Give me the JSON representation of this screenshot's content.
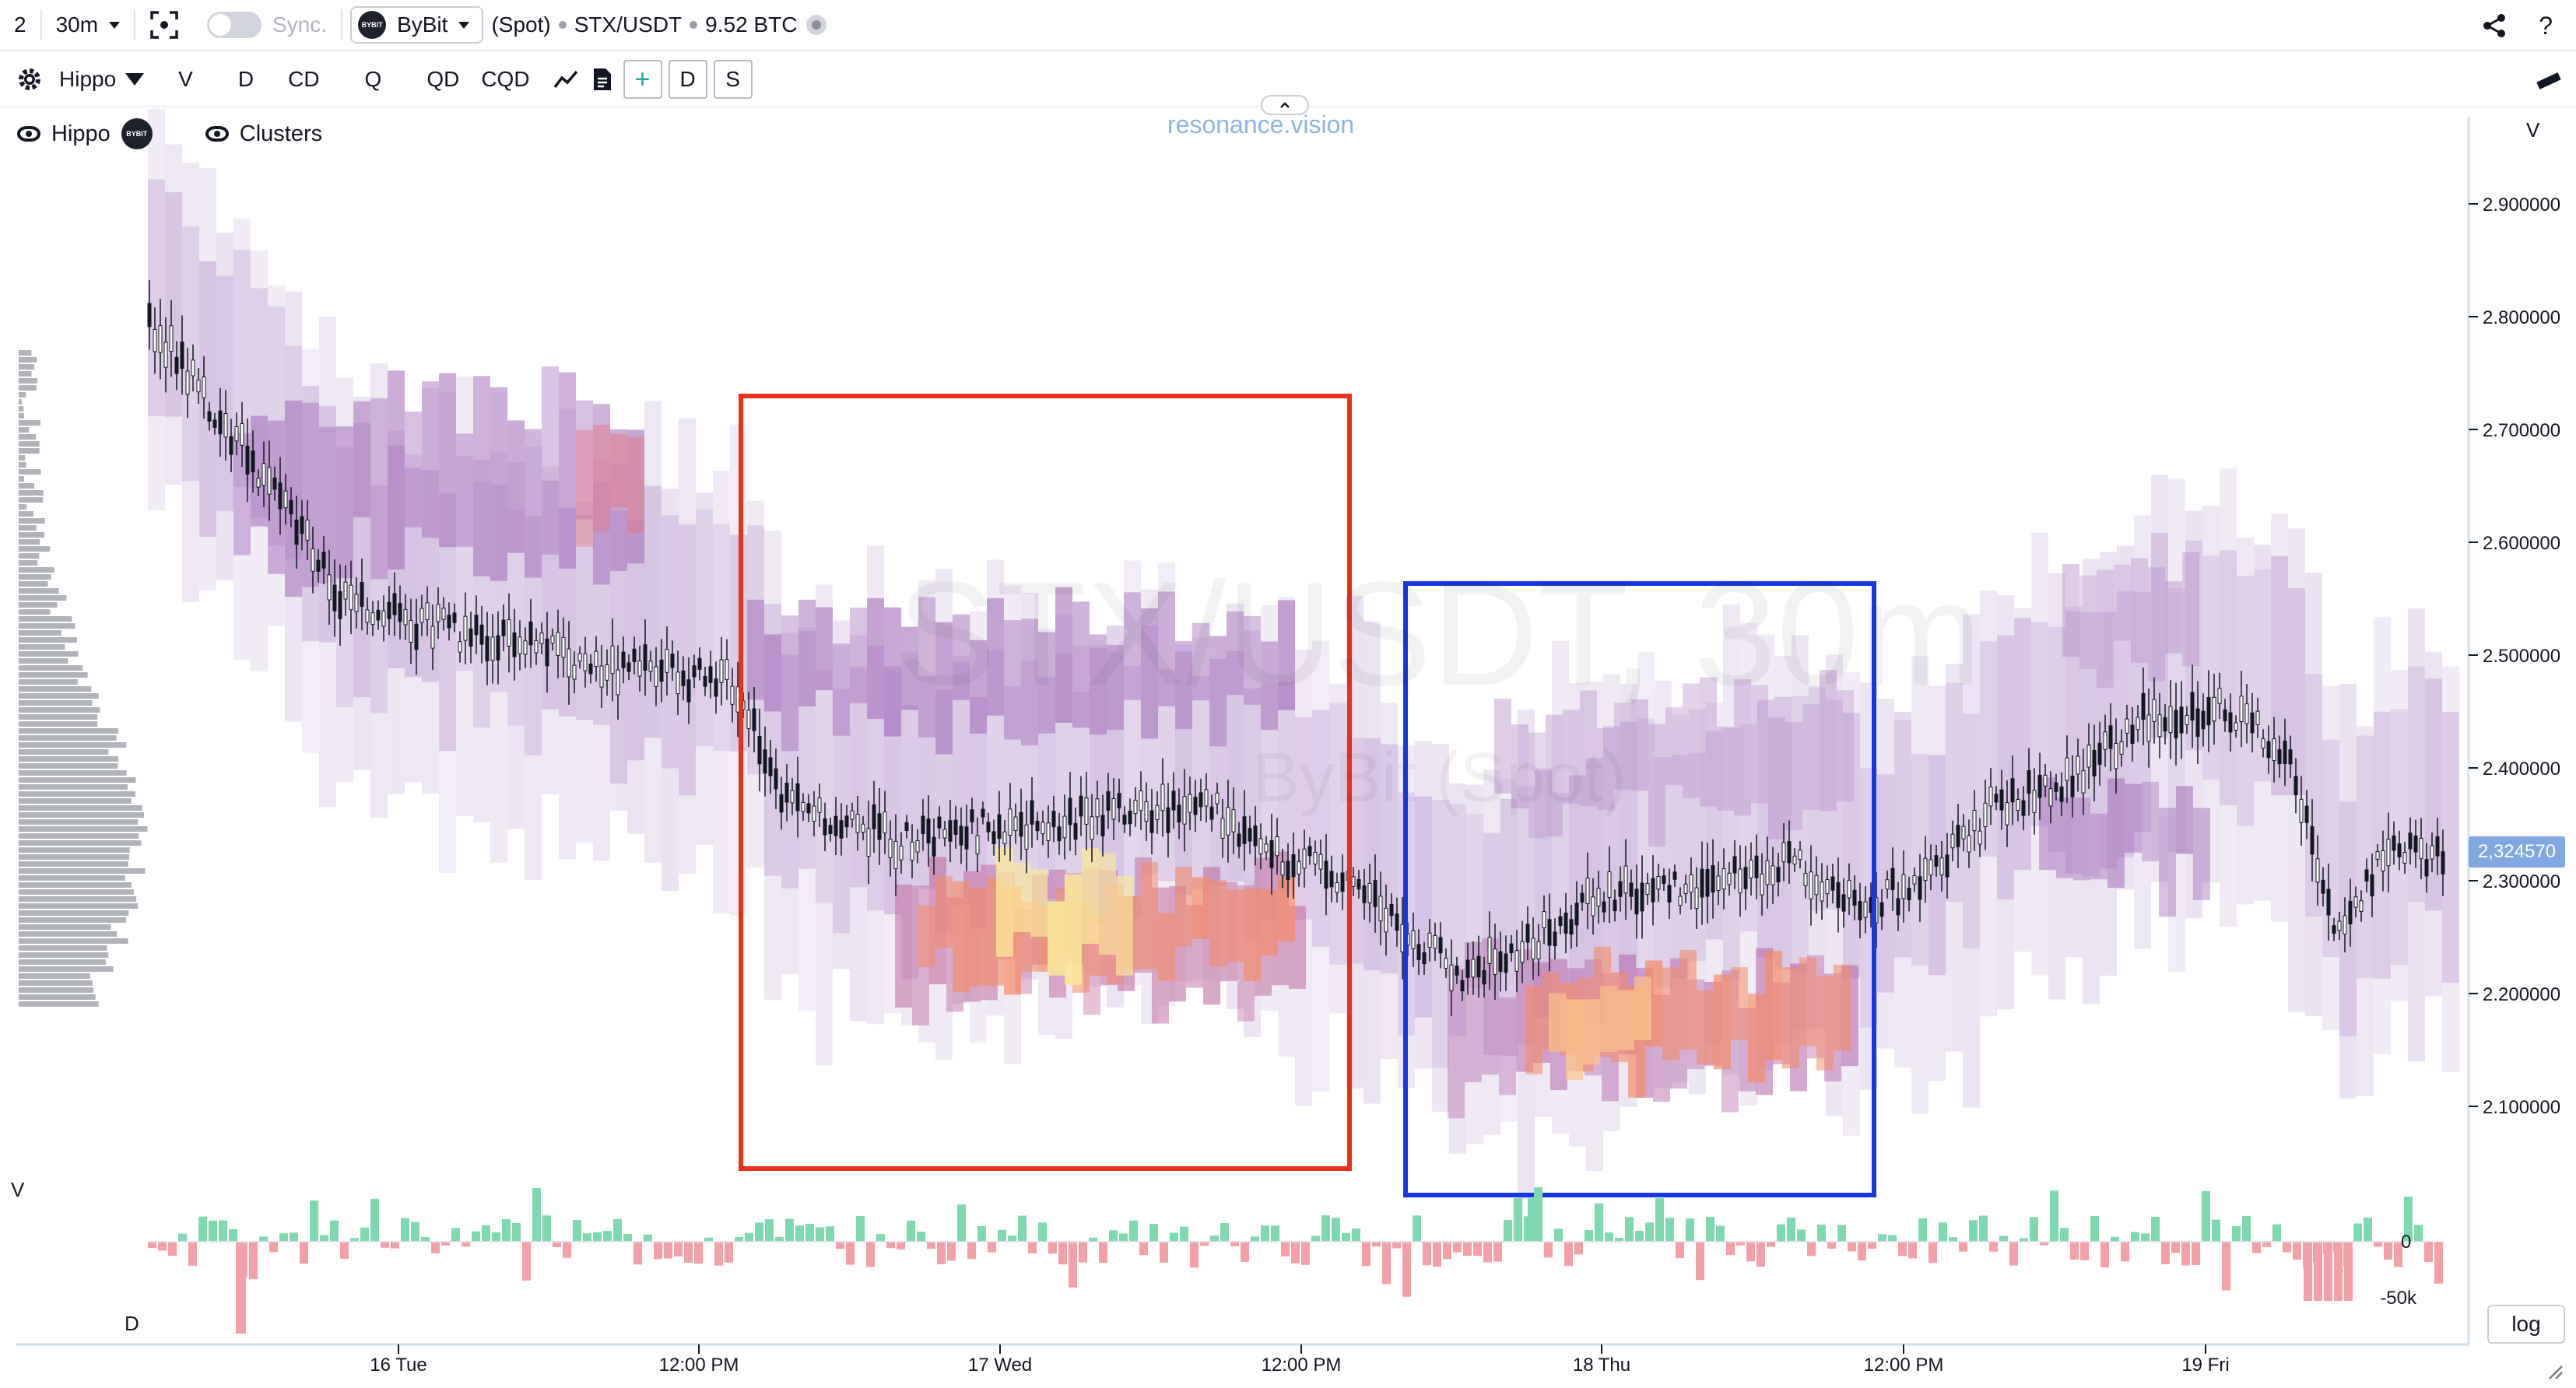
{
  "topbar": {
    "layout_count": "2",
    "interval": "30m",
    "sync_label": "Sync.",
    "exchange": "ByBit",
    "exchange_logo": "BYBIT",
    "market_type": "(Spot)",
    "symbol": "STX/USDT",
    "volume": "9.52 BTC",
    "icons": [
      "screenshot-icon",
      "share-icon",
      "help-icon"
    ],
    "help": "?"
  },
  "toolbar2": {
    "indicator_name": "Hippo",
    "items": [
      "V",
      "D",
      "CD",
      "Q",
      "QD",
      "CQD"
    ],
    "box_buttons": [
      "+",
      "D",
      "S"
    ]
  },
  "legend": {
    "items": [
      {
        "label": "Hippo",
        "has_logo": true
      },
      {
        "label": "Clusters",
        "has_logo": false
      }
    ]
  },
  "watermark": {
    "brand": "resonance.vision",
    "symbol": "STX/USDT, 30m",
    "market": "ByBit (Spot)"
  },
  "price_axis": {
    "label": "V",
    "ticks": [
      "2.900000",
      "2.800000",
      "2.700000",
      "2.600000",
      "2.500000",
      "2.400000",
      "2.300000",
      "2.200000",
      "2.100000"
    ],
    "current_price": "2,324570"
  },
  "volume_panel": {
    "label": "V",
    "delta_label": "D",
    "ticks": [
      "0",
      "-50k"
    ]
  },
  "time_axis": {
    "ticks": [
      "16 Tue",
      "12:00 PM",
      "17 Wed",
      "12:00 PM",
      "18 Thu",
      "12:00 PM",
      "19 Fri"
    ]
  },
  "buttons": {
    "log": "log"
  },
  "colors": {
    "red_box": "#e8301a",
    "blue_box": "#1638e0",
    "up_volume": "#7fd9b0",
    "down_volume": "#f4a0a8",
    "price_tag": "#7fa8e0"
  }
}
